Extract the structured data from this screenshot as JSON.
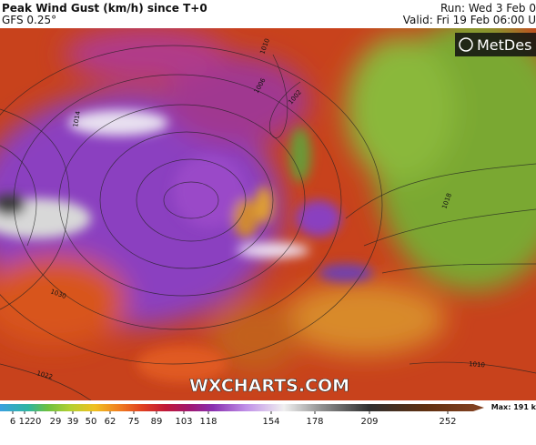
{
  "header": {
    "title": "Peak Wind Gust (km/h) since T+0",
    "subtitle": "GFS 0.25°",
    "run": "Run: Wed 3 Feb 0",
    "valid": "Valid: Fri 19 Feb 06:00 U"
  },
  "logo": "MetDes",
  "watermark": "WXCHARTS.COM",
  "legend": {
    "max_label": "Max: 191 k",
    "ticks": [
      6,
      12,
      20,
      29,
      39,
      50,
      62,
      75,
      89,
      103,
      118,
      154,
      178,
      209,
      252
    ]
  },
  "isobar_labels": [
    "1010",
    "1014",
    "1022",
    "1030",
    "1006",
    "1002",
    "1018",
    "1010"
  ]
}
